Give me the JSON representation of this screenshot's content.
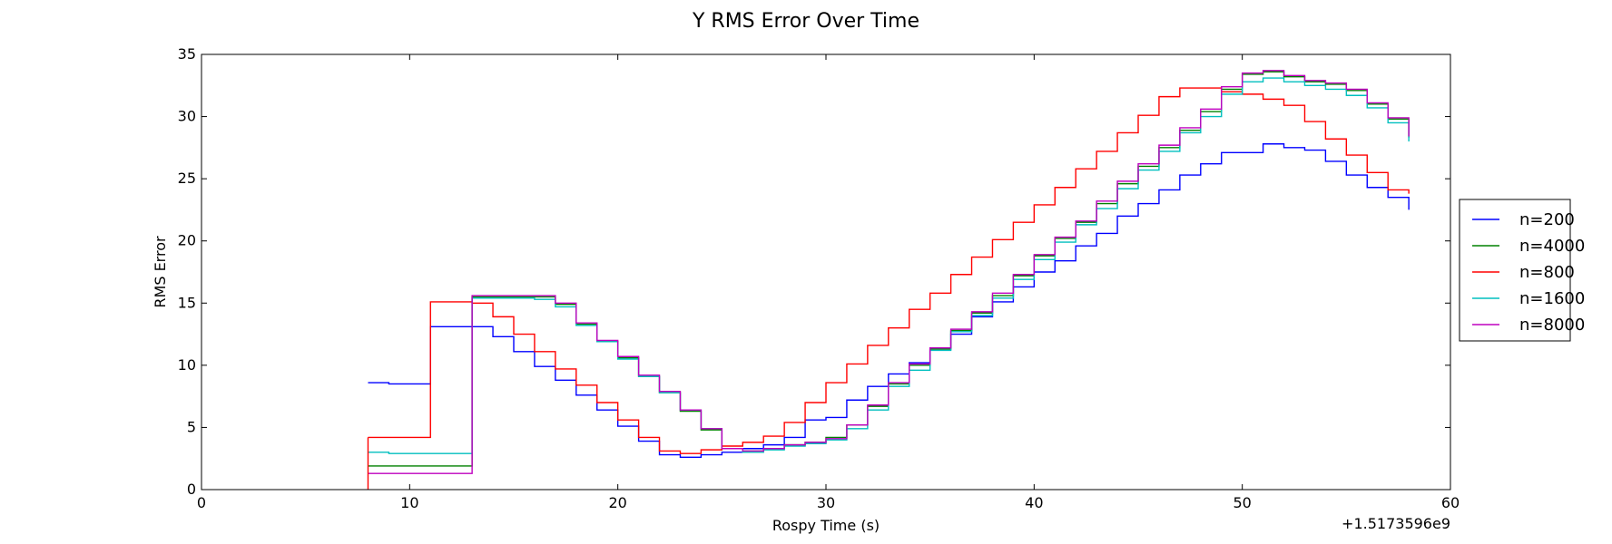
{
  "chart_data": {
    "type": "line",
    "title": "Y RMS Error Over Time",
    "xlabel": "Rospy Time (s)",
    "ylabel": "RMS Error",
    "x_offset_label": "+1.5173596e9",
    "xlim": [
      0,
      60
    ],
    "ylim": [
      0,
      35
    ],
    "xticks": [
      0,
      10,
      20,
      30,
      40,
      50,
      60
    ],
    "yticks": [
      0,
      5,
      10,
      15,
      20,
      25,
      30,
      35
    ],
    "grid": false,
    "legend": "right-outside",
    "x": [
      8,
      9,
      10,
      11,
      12,
      13,
      14,
      15,
      16,
      17,
      18,
      19,
      20,
      21,
      22,
      23,
      24,
      25,
      26,
      27,
      28,
      29,
      30,
      31,
      32,
      33,
      34,
      35,
      36,
      37,
      38,
      39,
      40,
      41,
      42,
      43,
      44,
      45,
      46,
      47,
      48,
      49,
      50,
      51,
      52,
      53,
      54,
      55,
      56,
      57,
      58
    ],
    "series": [
      {
        "name": "n=200",
        "color": "#0000ff",
        "values": [
          8.6,
          8.5,
          8.5,
          13.1,
          13.1,
          13.1,
          12.3,
          11.1,
          9.9,
          8.8,
          7.6,
          6.4,
          5.1,
          3.9,
          2.8,
          2.6,
          2.8,
          3.0,
          3.3,
          3.6,
          4.2,
          5.6,
          5.8,
          7.2,
          8.3,
          9.3,
          10.2,
          11.4,
          12.5,
          13.9,
          15.1,
          16.3,
          17.5,
          18.4,
          19.6,
          20.6,
          22.0,
          23.0,
          24.1,
          25.3,
          26.2,
          27.1,
          27.1,
          27.8,
          27.5,
          27.3,
          26.4,
          25.3,
          24.3,
          23.5,
          22.5
        ]
      },
      {
        "name": "n=4000",
        "color": "#008000",
        "values": [
          1.9,
          1.9,
          1.9,
          1.9,
          1.9,
          15.5,
          15.5,
          15.5,
          15.5,
          14.9,
          13.3,
          11.9,
          10.6,
          9.1,
          7.8,
          6.3,
          4.8,
          3.3,
          3.1,
          3.3,
          3.6,
          3.8,
          4.2,
          5.2,
          6.7,
          8.5,
          10.0,
          11.3,
          12.8,
          14.2,
          15.6,
          17.2,
          18.8,
          20.2,
          21.5,
          23.0,
          24.6,
          26.0,
          27.5,
          28.9,
          30.4,
          32.2,
          33.4,
          33.6,
          33.2,
          32.8,
          32.6,
          32.1,
          31.0,
          29.8,
          28.3
        ]
      },
      {
        "name": "n=800",
        "color": "#ff0000",
        "values": [
          4.2,
          4.2,
          4.2,
          15.1,
          15.1,
          15.0,
          13.9,
          12.5,
          11.1,
          9.7,
          8.4,
          7.0,
          5.6,
          4.2,
          3.1,
          2.9,
          3.2,
          3.5,
          3.8,
          4.3,
          5.4,
          7.0,
          8.6,
          10.1,
          11.6,
          13.0,
          14.5,
          15.8,
          17.3,
          18.7,
          20.1,
          21.5,
          22.9,
          24.3,
          25.8,
          27.2,
          28.7,
          30.1,
          31.6,
          32.3,
          32.3,
          32.0,
          31.8,
          31.4,
          30.9,
          29.6,
          28.2,
          26.9,
          25.5,
          24.1,
          23.8
        ]
      },
      {
        "name": "n=1600",
        "color": "#00bfbf",
        "values": [
          3.0,
          2.9,
          2.9,
          2.9,
          2.9,
          15.4,
          15.4,
          15.4,
          15.3,
          14.7,
          13.2,
          11.9,
          10.5,
          9.1,
          7.8,
          6.4,
          4.9,
          3.3,
          3.0,
          3.2,
          3.5,
          3.7,
          4.0,
          4.9,
          6.4,
          8.3,
          9.6,
          11.2,
          12.7,
          14.0,
          15.4,
          16.9,
          18.5,
          19.9,
          21.3,
          22.6,
          24.2,
          25.7,
          27.2,
          28.7,
          30.0,
          31.8,
          32.8,
          33.1,
          32.8,
          32.5,
          32.2,
          31.7,
          30.7,
          29.5,
          28.0
        ]
      },
      {
        "name": "n=8000",
        "color": "#bf00bf",
        "values": [
          1.3,
          1.3,
          1.3,
          1.3,
          1.3,
          15.6,
          15.6,
          15.6,
          15.6,
          15.0,
          13.4,
          12.0,
          10.7,
          9.2,
          7.9,
          6.4,
          4.9,
          3.3,
          3.1,
          3.3,
          3.6,
          3.8,
          4.1,
          5.2,
          6.8,
          8.6,
          10.1,
          11.4,
          12.9,
          14.3,
          15.8,
          17.3,
          18.9,
          20.3,
          21.6,
          23.2,
          24.8,
          26.2,
          27.7,
          29.1,
          30.6,
          32.4,
          33.5,
          33.7,
          33.3,
          32.9,
          32.7,
          32.2,
          31.1,
          29.9,
          28.4
        ]
      }
    ]
  }
}
